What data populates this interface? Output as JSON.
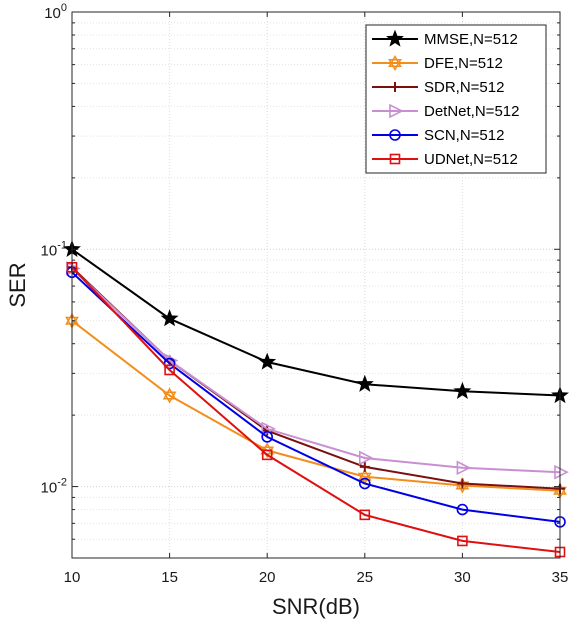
{
  "chart_data": {
    "type": "line",
    "title": "",
    "xlabel": "SNR(dB)",
    "ylabel": "SER",
    "x": [
      10,
      15,
      20,
      25,
      30,
      35
    ],
    "xlim": [
      10,
      35
    ],
    "ylim": [
      0.005,
      1
    ],
    "y_scale": "log",
    "grid": true,
    "legend_position": "top-right",
    "x_ticks": [
      "10",
      "15",
      "20",
      "25",
      "30",
      "35"
    ],
    "y_ticks": [
      {
        "base": "10",
        "exp": "0",
        "value": 1
      },
      {
        "base": "10",
        "exp": "-1",
        "value": 0.1
      },
      {
        "base": "10",
        "exp": "-2",
        "value": 0.01
      }
    ],
    "series": [
      {
        "name": "MMSE,N=512",
        "color": "#000000",
        "marker": "star",
        "values": [
          0.1,
          0.051,
          0.0335,
          0.027,
          0.0252,
          0.0242
        ]
      },
      {
        "name": "DFE,N=512",
        "color": "#f28e1c",
        "marker": "hexagram",
        "values": [
          0.05,
          0.0242,
          0.0142,
          0.011,
          0.0101,
          0.0096
        ]
      },
      {
        "name": "SDR,N=512",
        "color": "#7a1010",
        "marker": "plus",
        "values": [
          0.084,
          0.034,
          0.0172,
          0.0121,
          0.0103,
          0.0098
        ]
      },
      {
        "name": "DetNet,N=512",
        "color": "#c88fd1",
        "marker": "triangle-right",
        "values": [
          0.083,
          0.034,
          0.0175,
          0.0132,
          0.012,
          0.0115
        ]
      },
      {
        "name": "SCN,N=512",
        "color": "#0000e6",
        "marker": "circle",
        "values": [
          0.08,
          0.033,
          0.0162,
          0.0103,
          0.008,
          0.0071
        ]
      },
      {
        "name": "UDNet,N=512",
        "color": "#e01010",
        "marker": "square",
        "values": [
          0.084,
          0.031,
          0.0136,
          0.0076,
          0.0059,
          0.0053
        ]
      }
    ]
  }
}
